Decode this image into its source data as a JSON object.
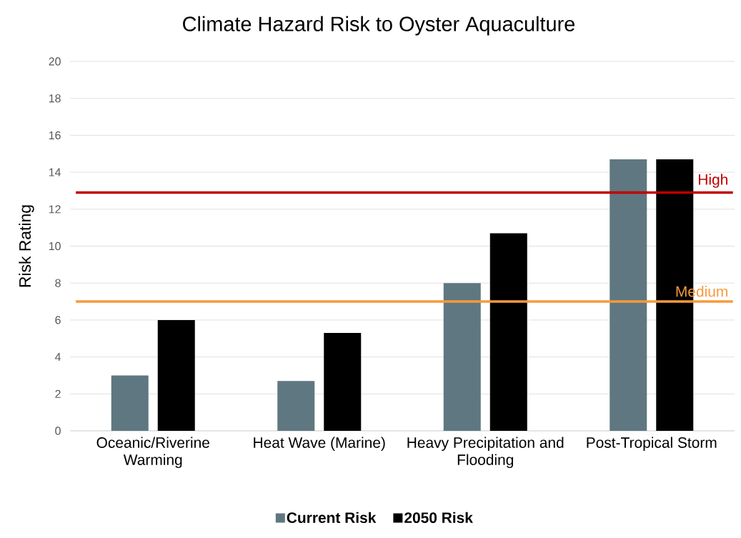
{
  "chart_data": {
    "type": "bar",
    "title": "Climate Hazard Risk to Oyster Aquaculture",
    "ylabel": "Risk Rating",
    "categories": [
      "Oceanic/Riverine Warming",
      "Heat Wave (Marine)",
      "Heavy Precipitation and Flooding",
      "Post-Tropical Storm"
    ],
    "series": [
      {
        "name": "Current Risk",
        "color": "#5f7780",
        "values": [
          3,
          2.7,
          8,
          14.7
        ]
      },
      {
        "name": "2050 Risk",
        "color": "#000000",
        "values": [
          6,
          5.3,
          10.7,
          14.7
        ]
      }
    ],
    "ylim": [
      0,
      20
    ],
    "yticks": [
      0,
      2,
      4,
      6,
      8,
      10,
      12,
      14,
      16,
      18,
      20
    ],
    "grid": "y",
    "legend": "bottom",
    "ref_lines": [
      {
        "axis": "y",
        "value": 12.9,
        "label": "High",
        "color": "#c00000"
      },
      {
        "axis": "y",
        "value": 7,
        "label": "Medium",
        "color": "#f79a3b"
      }
    ]
  }
}
